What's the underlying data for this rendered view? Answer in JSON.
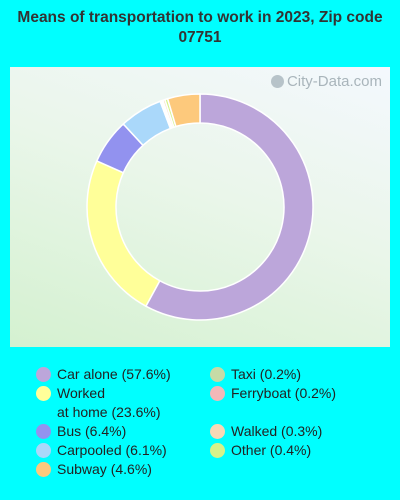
{
  "title": "Means of transportation to work in 2023, Zip code 07751",
  "watermark": "City-Data.com",
  "chart_data": {
    "type": "pie",
    "title": "Means of transportation to work in 2023, Zip code 07751",
    "donut": true,
    "legend_placement": "bottom",
    "slices": [
      {
        "label": "Car alone (57.6%)",
        "value": 57.6,
        "color": "#bca6da"
      },
      {
        "label": "Taxi (0.2%)",
        "value": 0.2,
        "color": "#c6dba6"
      },
      {
        "label": "Worked at home (23.6%)",
        "value": 23.6,
        "color": "#ffff99"
      },
      {
        "label": "Ferryboat (0.2%)",
        "value": 0.2,
        "color": "#f4b8b8"
      },
      {
        "label": "Bus (6.4%)",
        "value": 6.4,
        "color": "#9292ef"
      },
      {
        "label": "Walked (0.3%)",
        "value": 0.3,
        "color": "#f8d9b6"
      },
      {
        "label": "Carpooled (6.1%)",
        "value": 6.1,
        "color": "#aad8fa"
      },
      {
        "label": "Other (0.4%)",
        "value": 0.4,
        "color": "#d6f28a"
      },
      {
        "label": "Subway (4.6%)",
        "value": 4.6,
        "color": "#fdc97c"
      }
    ]
  }
}
